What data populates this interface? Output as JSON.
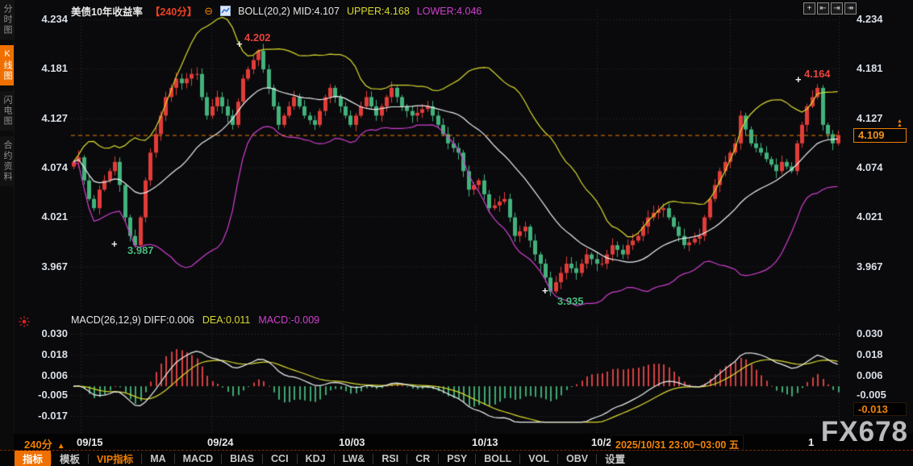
{
  "header": {
    "title": "美债10年收益率",
    "period": "【240分】",
    "remove_icon_glyph": "⊖",
    "boll_label": "BOLL(20,2)",
    "mid": "MID:4.107",
    "upper": "UPPER:4.168",
    "lower": "LOWER:4.046"
  },
  "window_icons": [
    {
      "name": "pan-icon",
      "glyph": "+"
    },
    {
      "name": "scale-left-axis-icon",
      "glyph": "⇤"
    },
    {
      "name": "scale-right-axis-icon",
      "glyph": "⇥"
    },
    {
      "name": "shift-right-icon",
      "glyph": "↠"
    }
  ],
  "sidebar": {
    "items": [
      {
        "label": "分时图",
        "active": false
      },
      {
        "label": "K线图",
        "active": true
      },
      {
        "label": "闪电图",
        "active": false
      },
      {
        "label": "合约资料",
        "active": false
      }
    ]
  },
  "price_axis": {
    "left_labels": [
      "4.234",
      "4.181",
      "4.127",
      "4.074",
      "4.021",
      "3.967"
    ],
    "right_labels": [
      "4.234",
      "4.181",
      "4.127",
      "4.074",
      "4.021",
      "3.967"
    ],
    "current_label": "4.109"
  },
  "macd_panel": {
    "name": "MACD(26,12,9)",
    "diff": "DIFF:0.006",
    "dea": "DEA:0.011",
    "macd": "MACD:-0.009",
    "left_labels": [
      "0.030",
      "0.018",
      "0.006",
      "-0.005",
      "-0.017"
    ],
    "right_labels": [
      "0.030",
      "0.018",
      "0.006",
      "-0.005"
    ],
    "current_label": "-0.013"
  },
  "xaxis": {
    "period_label": "240分",
    "period_arrow": "▲",
    "labels": [
      "09/15",
      "09/24",
      "10/03",
      "10/13",
      "10/2"
    ],
    "tooltip": "2025/10/31 23:00~03:00 五",
    "partial_label": "1"
  },
  "toolbar": {
    "items": [
      {
        "label": "指标",
        "style": "active"
      },
      {
        "label": "模板",
        "style": "normal"
      },
      {
        "label": "VIP指标",
        "style": "vip"
      },
      {
        "label": "MA",
        "style": "normal"
      },
      {
        "label": "MACD",
        "style": "normal"
      },
      {
        "label": "BIAS",
        "style": "normal"
      },
      {
        "label": "CCI",
        "style": "normal"
      },
      {
        "label": "KDJ",
        "style": "normal"
      },
      {
        "label": "LW&",
        "style": "normal"
      },
      {
        "label": "RSI",
        "style": "normal"
      },
      {
        "label": "CR",
        "style": "normal"
      },
      {
        "label": "PSY",
        "style": "normal"
      },
      {
        "label": "BOLL",
        "style": "normal"
      },
      {
        "label": "VOL",
        "style": "normal"
      },
      {
        "label": "OBV",
        "style": "normal"
      },
      {
        "label": "设置",
        "style": "normal"
      }
    ]
  },
  "watermark": "FX678",
  "colors": {
    "accent": "#f07f00",
    "up": "#e23c39",
    "down": "#43b27c",
    "boll_mid": "#edf0f2",
    "boll_upper": "#d9d92f",
    "boll_lower": "#d13fd1",
    "grid": "#2f3237",
    "macd_bar_up": "#d64040",
    "macd_bar_down": "#3fa970"
  },
  "chart_data": {
    "type": "candlestick+macd",
    "instrument": "美债10年收益率",
    "interval": "240分",
    "price_axis_ticks": [
      4.234,
      4.181,
      4.127,
      4.074,
      4.021,
      3.967
    ],
    "macd_axis_ticks": [
      0.03,
      0.018,
      0.006,
      -0.005,
      -0.017
    ],
    "current_price": 4.109,
    "boll": {
      "period": 20,
      "k": 2,
      "mid": 4.107,
      "upper": 4.168,
      "lower": 4.046
    },
    "macd_values": {
      "diff": 0.006,
      "dea": 0.011,
      "macd": -0.009,
      "current_bar": -0.013
    },
    "x_labels": [
      "09/15",
      "09/24",
      "10/03",
      "10/13",
      "10/2"
    ],
    "annotations": [
      {
        "text": "4.202",
        "kind": "high"
      },
      {
        "text": "3.987",
        "kind": "low"
      },
      {
        "text": "3.935",
        "kind": "low"
      },
      {
        "text": "4.164",
        "kind": "high"
      }
    ],
    "extremes": {
      "12": {
        "low": 3.987
      },
      "36": {
        "high": 4.202
      },
      "93": {
        "low": 3.935
      },
      "145": {
        "high": 4.164
      }
    },
    "closes": [
      4.08,
      4.085,
      4.06,
      4.04,
      4.03,
      4.05,
      4.06,
      4.07,
      4.08,
      4.055,
      4.02,
      4.0,
      3.99,
      4.02,
      4.06,
      4.09,
      4.11,
      4.13,
      4.15,
      4.16,
      4.17,
      4.165,
      4.17,
      4.175,
      4.175,
      4.15,
      4.13,
      4.14,
      4.15,
      4.14,
      4.13,
      4.12,
      4.145,
      4.17,
      4.18,
      4.19,
      4.2,
      4.18,
      4.16,
      4.14,
      4.12,
      4.13,
      4.14,
      4.15,
      4.14,
      4.13,
      4.125,
      4.12,
      4.135,
      4.15,
      4.16,
      4.15,
      4.14,
      4.13,
      4.12,
      4.13,
      4.14,
      4.15,
      4.14,
      4.13,
      4.14,
      4.15,
      4.16,
      4.15,
      4.14,
      4.135,
      4.13,
      4.133,
      4.137,
      4.14,
      4.13,
      4.12,
      4.11,
      4.1,
      4.095,
      4.09,
      4.07,
      4.05,
      4.055,
      4.06,
      4.045,
      4.03,
      4.033,
      4.037,
      4.04,
      4.02,
      4.0,
      4.005,
      4.01,
      3.995,
      3.98,
      3.97,
      3.955,
      3.94,
      3.95,
      3.96,
      3.97,
      3.965,
      3.96,
      3.97,
      3.98,
      3.975,
      3.97,
      3.97,
      3.98,
      3.99,
      3.985,
      3.98,
      3.99,
      3.995,
      4.0,
      4.01,
      4.02,
      4.025,
      4.028,
      4.03,
      4.02,
      4.01,
      4.0,
      3.99,
      3.993,
      3.997,
      4.0,
      4.02,
      4.04,
      4.055,
      4.07,
      4.08,
      4.09,
      4.1,
      4.13,
      4.115,
      4.1,
      4.095,
      4.09,
      4.083,
      4.077,
      4.07,
      4.08,
      4.075,
      4.07,
      4.1,
      4.12,
      4.14,
      4.15,
      4.16,
      4.12,
      4.11,
      4.1,
      4.109
    ]
  }
}
